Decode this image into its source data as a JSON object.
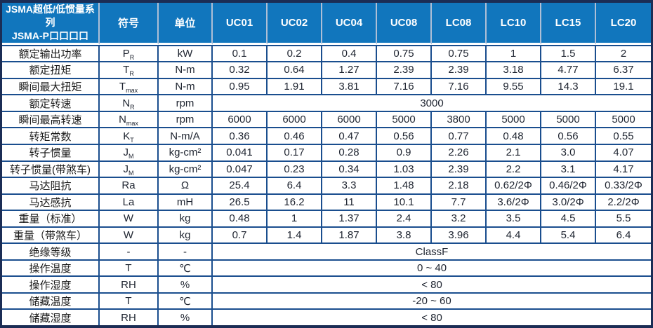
{
  "table": {
    "title_line1": "JSMA超低/低惯量系列",
    "title_line2": "JSMA-P口口口口",
    "col_symbol": "符号",
    "col_unit": "单位",
    "models": [
      "UC01",
      "UC02",
      "UC04",
      "UC08",
      "LC08",
      "LC10",
      "LC15",
      "LC20"
    ],
    "rows": [
      {
        "label": "额定输出功率",
        "sym": "P",
        "sub": "R",
        "unit": "kW",
        "values": [
          "0.1",
          "0.2",
          "0.4",
          "0.75",
          "0.75",
          "1",
          "1.5",
          "2"
        ]
      },
      {
        "label": "额定扭矩",
        "sym": "T",
        "sub": "R",
        "unit": "N-m",
        "values": [
          "0.32",
          "0.64",
          "1.27",
          "2.39",
          "2.39",
          "3.18",
          "4.77",
          "6.37"
        ]
      },
      {
        "label": "瞬间最大扭矩",
        "sym": "T",
        "sub": "max",
        "unit": "N-m",
        "values": [
          "0.95",
          "1.91",
          "3.81",
          "7.16",
          "7.16",
          "9.55",
          "14.3",
          "19.1"
        ]
      },
      {
        "label": "额定转速",
        "sym": "N",
        "sub": "R",
        "unit": "rpm",
        "merged": "3000"
      },
      {
        "label": "瞬间最高转速",
        "sym": "N",
        "sub": "max",
        "unit": "rpm",
        "values": [
          "6000",
          "6000",
          "6000",
          "5000",
          "3800",
          "5000",
          "5000",
          "5000"
        ]
      },
      {
        "label": "转矩常数",
        "sym": "K",
        "sub": "T",
        "unit": "N-m/A",
        "values": [
          "0.36",
          "0.46",
          "0.47",
          "0.56",
          "0.77",
          "0.48",
          "0.56",
          "0.55"
        ]
      },
      {
        "label": "转子惯量",
        "sym": "J",
        "sub": "M",
        "unit": "kg-cm²",
        "values": [
          "0.041",
          "0.17",
          "0.28",
          "0.9",
          "2.26",
          "2.1",
          "3.0",
          "4.07"
        ]
      },
      {
        "label": "转子惯量(带煞车)",
        "sym": "J",
        "sub": "M",
        "unit": "kg-cm²",
        "values": [
          "0.047",
          "0.23",
          "0.34",
          "1.03",
          "2.39",
          "2.2",
          "3.1",
          "4.17"
        ]
      },
      {
        "label": "马达阻抗",
        "sym": "Ra",
        "sub": "",
        "unit": "Ω",
        "values": [
          "25.4",
          "6.4",
          "3.3",
          "1.48",
          "2.18",
          "0.62/2Φ",
          "0.46/2Φ",
          "0.33/2Φ"
        ]
      },
      {
        "label": "马达感抗",
        "sym": "La",
        "sub": "",
        "unit": "mH",
        "values": [
          "26.5",
          "16.2",
          "11",
          "10.1",
          "7.7",
          "3.6/2Φ",
          "3.0/2Φ",
          "2.2/2Φ"
        ]
      },
      {
        "label": "重量（标准）",
        "sym": "W",
        "sub": "",
        "unit": "kg",
        "values": [
          "0.48",
          "1",
          "1.37",
          "2.4",
          "3.2",
          "3.5",
          "4.5",
          "5.5"
        ]
      },
      {
        "label": "重量（带煞车）",
        "sym": "W",
        "sub": "",
        "unit": "kg",
        "values": [
          "0.7",
          "1.4",
          "1.87",
          "3.8",
          "3.96",
          "4.4",
          "5.4",
          "6.4"
        ]
      },
      {
        "label": "绝缘等级",
        "sym": "-",
        "sub": "",
        "unit": "-",
        "merged": "ClassF"
      },
      {
        "label": "操作温度",
        "sym": "T",
        "sub": "",
        "unit": "℃",
        "merged": "0 ~ 40"
      },
      {
        "label": "操作湿度",
        "sym": "RH",
        "sub": "",
        "unit": "%",
        "merged": "< 80"
      },
      {
        "label": "储藏温度",
        "sym": "T",
        "sub": "",
        "unit": "℃",
        "merged": "-20 ~ 60"
      },
      {
        "label": "储藏湿度",
        "sym": "RH",
        "sub": "",
        "unit": "%",
        "merged": "< 80"
      }
    ],
    "colors": {
      "header_bg": "#1176bd",
      "outer_border": "#1b2d55",
      "grid_line": "#1a4e8e",
      "header_separator": "#aebfd6",
      "header_text": "#ffffff"
    }
  }
}
